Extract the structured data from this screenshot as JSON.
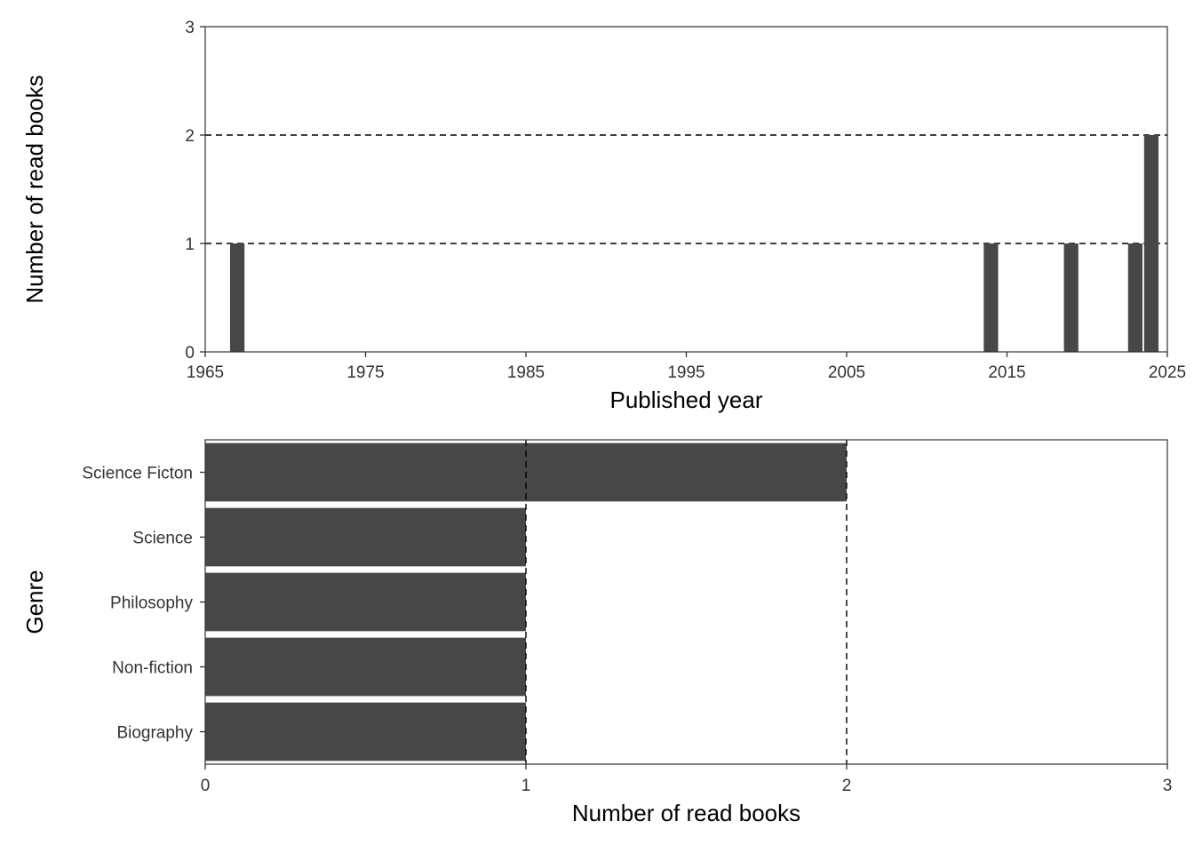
{
  "chart_data": [
    {
      "type": "bar",
      "orientation": "vertical",
      "xlabel": "Published year",
      "ylabel": "Number of read books",
      "xlim": [
        1965,
        2025
      ],
      "ylim": [
        0,
        3
      ],
      "xticks": [
        "1965",
        "1975",
        "1985",
        "1995",
        "2005",
        "2015",
        "2025"
      ],
      "yticks": [
        "0",
        "1",
        "2",
        "3"
      ],
      "gridlines_y": [
        1,
        2
      ],
      "grid_style": "dashed",
      "bar_color": "#474747",
      "bars": [
        {
          "x": 1967,
          "value": 1
        },
        {
          "x": 2014,
          "value": 1
        },
        {
          "x": 2019,
          "value": 1
        },
        {
          "x": 2023,
          "value": 1
        },
        {
          "x": 2024,
          "value": 2
        }
      ]
    },
    {
      "type": "bar",
      "orientation": "horizontal",
      "xlabel": "Number of read books",
      "ylabel": "Genre",
      "xlim": [
        0,
        3
      ],
      "xticks": [
        "0",
        "1",
        "2",
        "3"
      ],
      "gridlines_x": [
        1,
        2
      ],
      "grid_style": "dashed",
      "bar_color": "#474747",
      "categories": [
        "Science Ficton",
        "Science",
        "Philosophy",
        "Non-fiction",
        "Biography"
      ],
      "values": [
        2,
        1,
        1,
        1,
        1
      ]
    }
  ]
}
